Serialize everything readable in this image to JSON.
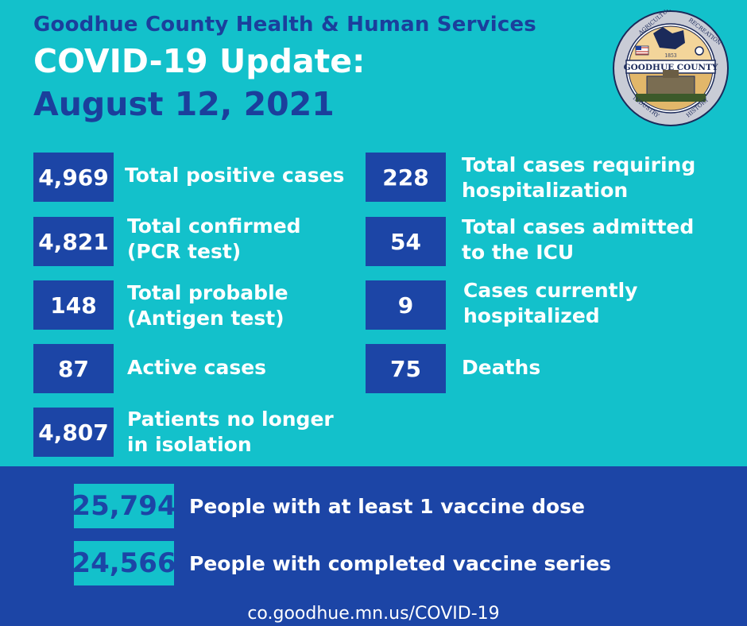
{
  "header": {
    "organization": "Goodhue County Health & Human Services",
    "title": "COVID-19 Update:",
    "date": "August 12, 2021"
  },
  "seal": {
    "top_text": "AGRICULTURE",
    "right_text": "RECREATION",
    "band_text": "GOODHUE COUNTY",
    "year": "1853",
    "bottom_left_text": "INDUSTRY",
    "bottom_right_text": "HISTORY"
  },
  "stats_left": [
    {
      "value": "4,969",
      "label": "Total positive cases"
    },
    {
      "value": "4,821",
      "label": "Total confirmed\n(PCR test)"
    },
    {
      "value": "148",
      "label": "Total probable\n(Antigen test)"
    },
    {
      "value": "87",
      "label": "Active cases"
    },
    {
      "value": "4,807",
      "label": "Patients no longer\nin isolation"
    }
  ],
  "stats_right": [
    {
      "value": "228",
      "label": "Total cases requiring\nhospitalization"
    },
    {
      "value": "54",
      "label": "Total cases admitted\nto the ICU"
    },
    {
      "value": "9",
      "label": "Cases currently\nhospitalized"
    },
    {
      "value": "75",
      "label": "Deaths"
    }
  ],
  "vaccine": [
    {
      "value": "25,794",
      "label": "People with at least 1 vaccine dose"
    },
    {
      "value": "24,566",
      "label": "People with completed vaccine series"
    }
  ],
  "footer": {
    "url": "co.goodhue.mn.us/COVID-19"
  },
  "colors": {
    "background": "#13c1cb",
    "primary_blue": "#1c45a6",
    "white": "#ffffff"
  }
}
